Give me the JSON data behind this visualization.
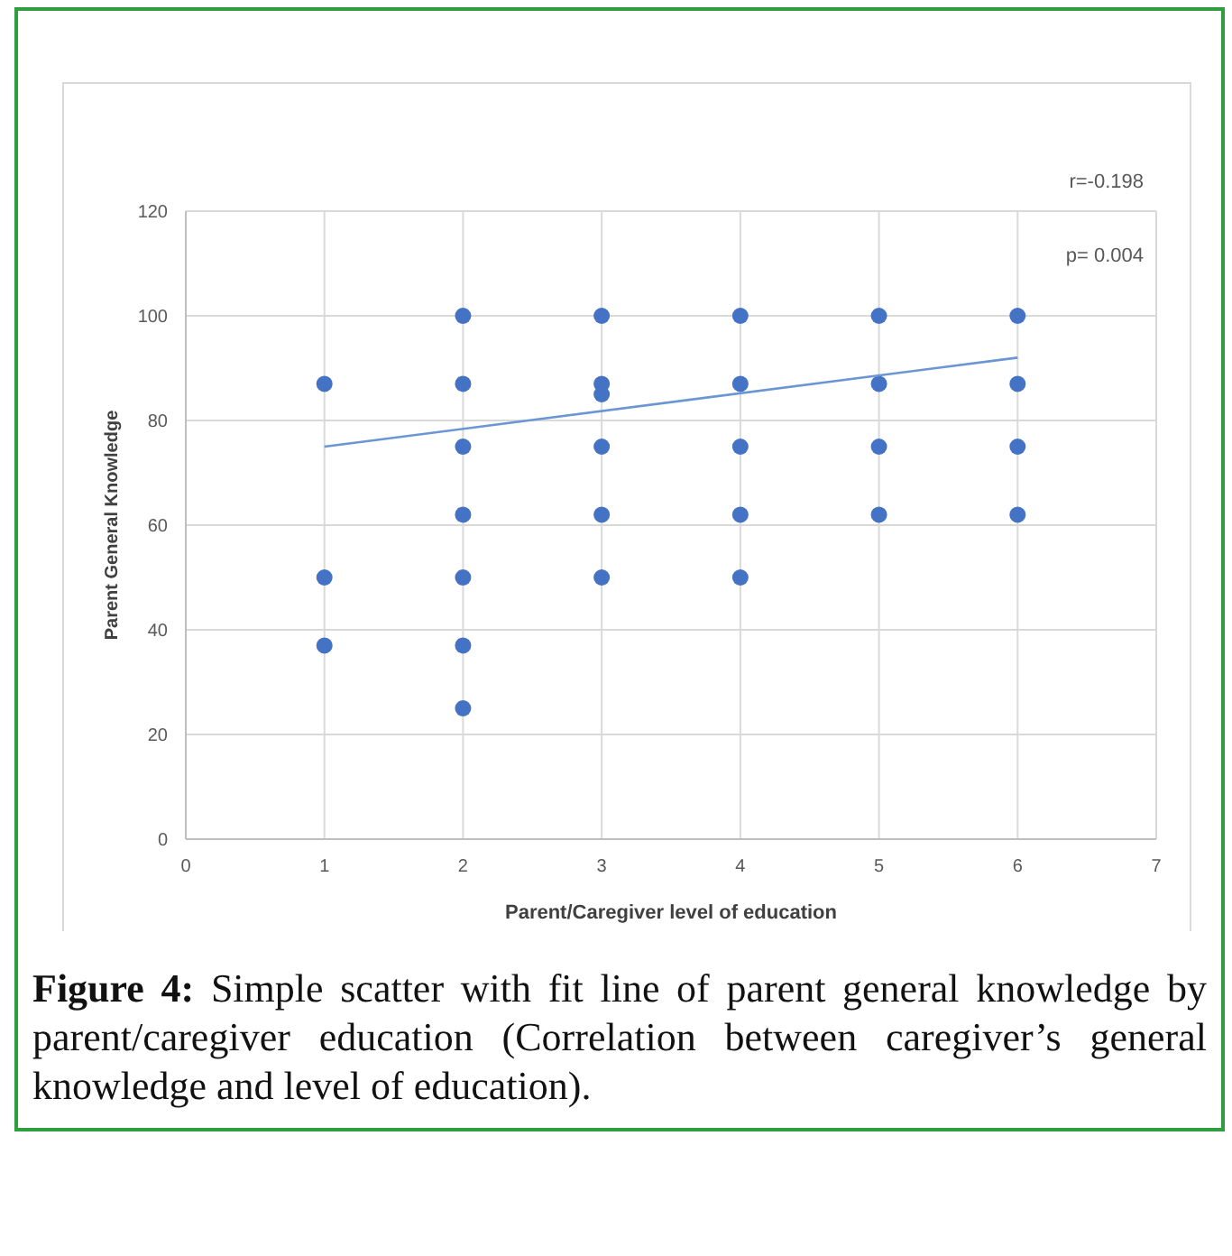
{
  "chart_data": {
    "type": "scatter",
    "xlabel": "Parent/Caregiver level of education",
    "ylabel": "Parent General Knowledge",
    "xlim": [
      0,
      7
    ],
    "xticks": [
      0,
      1,
      2,
      3,
      4,
      5,
      6,
      7
    ],
    "ylim": [
      0,
      120
    ],
    "yticks": [
      0,
      20,
      40,
      60,
      80,
      100,
      120
    ],
    "grid": true,
    "series": [
      {
        "marker": "circle",
        "color": "#4472c4",
        "x": [
          1,
          1,
          1,
          2,
          2,
          2,
          2,
          2,
          2,
          2,
          3,
          3,
          3,
          3,
          3,
          3,
          4,
          4,
          4,
          4,
          4,
          5,
          5,
          5,
          5,
          6,
          6,
          6,
          6
        ],
        "values": [
          87,
          50,
          37,
          100,
          87,
          75,
          62,
          50,
          37,
          25,
          100,
          87,
          85,
          75,
          62,
          50,
          100,
          87,
          75,
          62,
          50,
          100,
          87,
          75,
          62,
          100,
          87,
          75,
          62
        ]
      },
      {
        "type": "line",
        "color": "#6a96d4",
        "x": [
          1,
          6
        ],
        "values": [
          75,
          92
        ]
      }
    ],
    "annotations": [
      "r=-0.198",
      "p= 0.004",
      "Figure 4: Simple scatter with fit line of parent general knowledge by parent/caregiver education (Correlation between caregiver’s general knowledge and level of education)."
    ]
  }
}
